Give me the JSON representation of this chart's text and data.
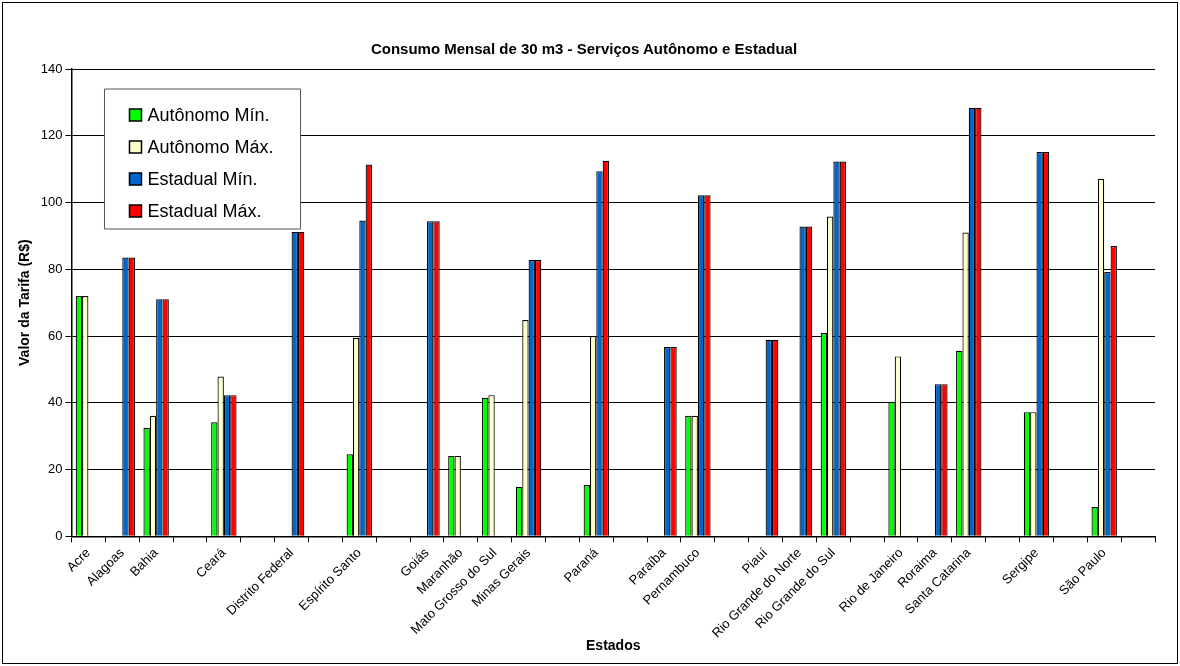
{
  "chart_data": {
    "type": "bar",
    "title": "Consumo Mensal de 30 m3 - Serviços Autônomo e Estadual",
    "xlabel": "Estados",
    "ylabel": "Valor da Tarifa (R$)",
    "categories": [
      "Acre",
      "Alagoas",
      "Bahia",
      null,
      "Ceará",
      null,
      "Distrito Federal",
      null,
      "Espírito Santo",
      null,
      "Goiás",
      "Maranhão",
      "Mato Grosso do Sul",
      "Minas Gerais",
      null,
      "Paraná",
      null,
      "Paraíba",
      "Pernambuco",
      null,
      "Piauí",
      "Rio Grande do Norte",
      "Rio Grande do Sul",
      null,
      "Rio de Janeiro",
      "Roraima",
      "Santa Catarina",
      null,
      "Sergipe",
      null,
      "São Paulo",
      null
    ],
    "series": [
      {
        "name": "Autônomo Mín.",
        "color": "#00ff00",
        "values": [
          72,
          null,
          32.5,
          null,
          34.2,
          null,
          null,
          null,
          24.6,
          null,
          null,
          24.1,
          41.5,
          14.8,
          null,
          15.4,
          null,
          null,
          36.1,
          null,
          null,
          null,
          60.9,
          null,
          40.3,
          null,
          55.6,
          null,
          37.2,
          null,
          8.8,
          null
        ]
      },
      {
        "name": "Autônomo Máx.",
        "color": "#ffffcc",
        "values": [
          72,
          null,
          36.1,
          null,
          47.9,
          null,
          null,
          null,
          59.5,
          null,
          null,
          24.1,
          42.3,
          64.8,
          null,
          60,
          null,
          null,
          36.1,
          null,
          null,
          null,
          95.8,
          null,
          53.9,
          null,
          91,
          null,
          37.2,
          null,
          107.1,
          null
        ]
      },
      {
        "name": "Estadual Mín.",
        "color": "#0066cc",
        "values": [
          null,
          83.5,
          71,
          null,
          42.3,
          null,
          91.2,
          null,
          94.6,
          null,
          94.4,
          null,
          null,
          82.8,
          null,
          109.4,
          null,
          56.7,
          102.2,
          null,
          58.9,
          92.8,
          112.3,
          null,
          null,
          45.6,
          128.4,
          null,
          115.1,
          null,
          79.2,
          null
        ]
      },
      {
        "name": "Estadual Máx.",
        "color": "#ff0000",
        "values": [
          null,
          83.5,
          71,
          null,
          42.3,
          null,
          91.2,
          null,
          111.4,
          null,
          94.4,
          null,
          null,
          82.8,
          null,
          112.5,
          null,
          56.7,
          102.2,
          null,
          58.9,
          92.8,
          112.3,
          null,
          null,
          45.6,
          128.4,
          null,
          115.1,
          null,
          87,
          null
        ]
      }
    ],
    "ylim": [
      0,
      140
    ],
    "yticks": [
      0,
      20,
      40,
      60,
      80,
      100,
      120,
      140
    ],
    "grid": "y",
    "legend": "top left"
  }
}
